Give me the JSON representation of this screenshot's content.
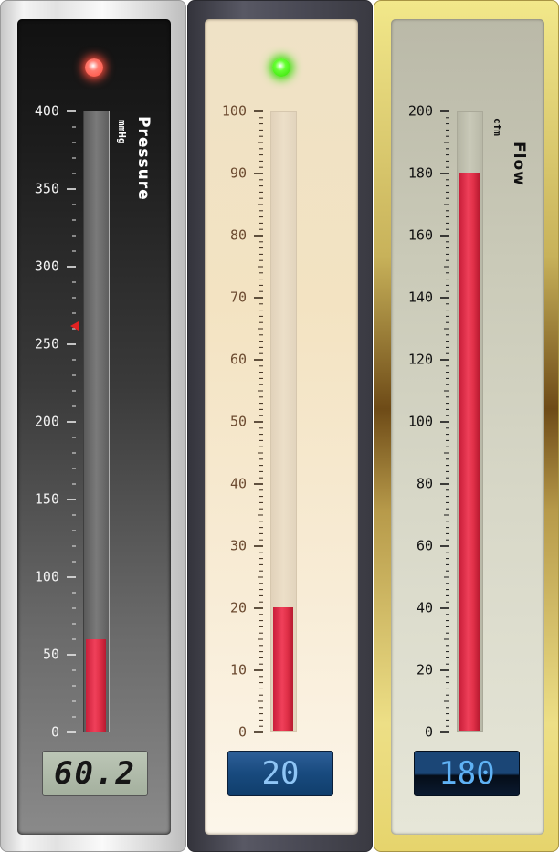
{
  "gauges": [
    {
      "title": "Pressure",
      "unit": "mmHg",
      "min": 0,
      "max": 400,
      "major_step": 50,
      "minor_per_major": 5,
      "value": 60.2,
      "value_display": "60.2",
      "marker_value": 262,
      "led_color": "#ff7a6e",
      "led_glow": "#ff4c3c",
      "lcd_style": "lcd1",
      "ticks": [
        "0",
        "50",
        "100",
        "150",
        "200",
        "250",
        "300",
        "350",
        "400"
      ]
    },
    {
      "title": "",
      "unit": "",
      "min": 0,
      "max": 100,
      "major_step": 10,
      "minor_per_major": 10,
      "value": 20,
      "value_display": "20",
      "led_color": "#66ff33",
      "led_glow": "#33dd00",
      "lcd_style": "lcd2",
      "ticks": [
        "0",
        "10",
        "20",
        "30",
        "40",
        "50",
        "60",
        "70",
        "80",
        "90",
        "100"
      ]
    },
    {
      "title": "Flow",
      "unit": "cfm",
      "min": 0,
      "max": 200,
      "major_step": 20,
      "minor_per_major": 10,
      "value": 180,
      "value_display": "180",
      "lcd_style": "lcd3",
      "ticks": [
        "0",
        "20",
        "40",
        "60",
        "80",
        "100",
        "120",
        "140",
        "160",
        "180",
        "200"
      ]
    }
  ]
}
